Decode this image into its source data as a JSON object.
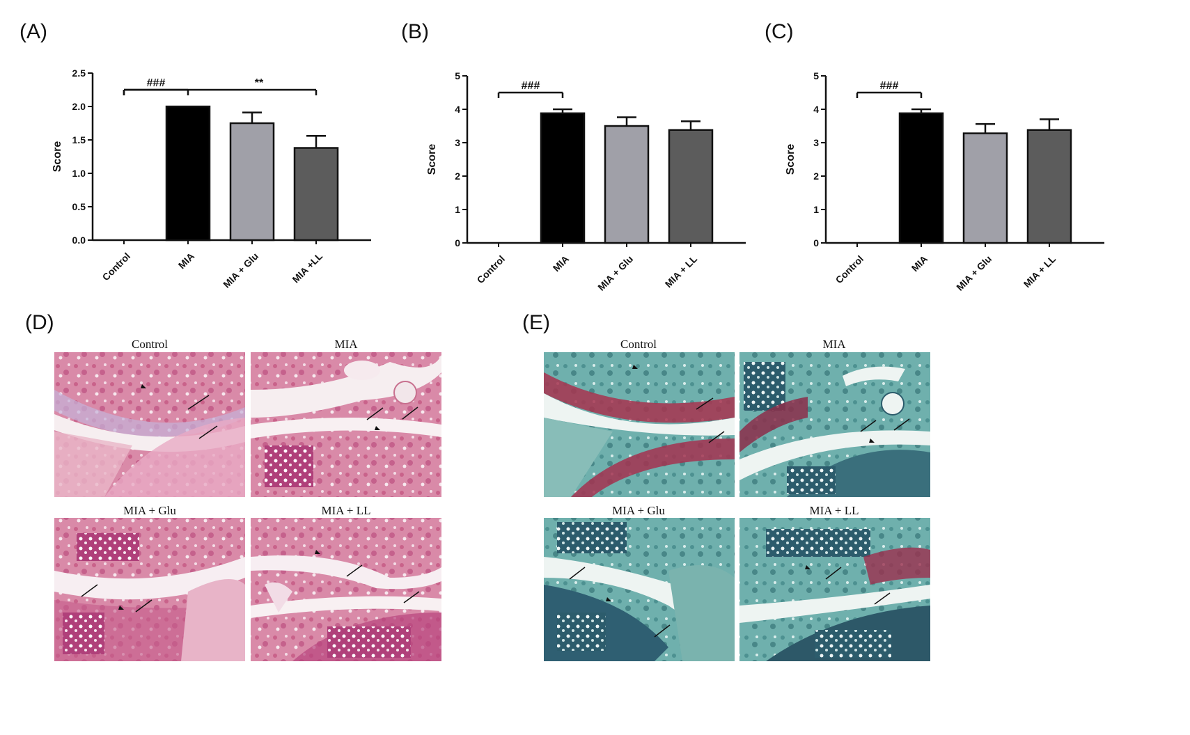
{
  "panels": {
    "A": "(A)",
    "B": "(B)",
    "C": "(C)",
    "D": "(D)",
    "E": "(E)"
  },
  "chart_data": [
    {
      "id": "A",
      "type": "bar",
      "categories": [
        "Control",
        "MIA",
        "MIA + Glu",
        "MIA +LL"
      ],
      "values": [
        0,
        2.0,
        1.75,
        1.38
      ],
      "errors": [
        0,
        0,
        0.16,
        0.18
      ],
      "ylabel": "Score",
      "ylim": [
        0,
        2.5
      ],
      "yticks": [
        "0.0",
        "0.5",
        "1.0",
        "1.5",
        "2.0",
        "2.5"
      ],
      "bar_colors": [
        "#ffffff",
        "#000000",
        "#a0a0a8",
        "#5c5c5c"
      ],
      "annotations": [
        {
          "text": "###",
          "from": "Control",
          "to": "MIA"
        },
        {
          "text": "**",
          "from": "Control",
          "to": "MIA +LL"
        }
      ]
    },
    {
      "id": "B",
      "type": "bar",
      "categories": [
        "Control",
        "MIA",
        "MIA + Glu",
        "MIA + LL"
      ],
      "values": [
        0,
        3.88,
        3.5,
        3.38
      ],
      "errors": [
        0,
        0.12,
        0.26,
        0.26
      ],
      "ylabel": "Score",
      "ylim": [
        0,
        5
      ],
      "yticks": [
        "0",
        "1",
        "2",
        "3",
        "4",
        "5"
      ],
      "bar_colors": [
        "#ffffff",
        "#000000",
        "#a0a0a8",
        "#5c5c5c"
      ],
      "annotations": [
        {
          "text": "###",
          "from": "Control",
          "to": "MIA"
        }
      ]
    },
    {
      "id": "C",
      "type": "bar",
      "categories": [
        "Control",
        "MIA",
        "MIA + Glu",
        "MIA + LL"
      ],
      "values": [
        0,
        3.88,
        3.28,
        3.38
      ],
      "errors": [
        0,
        0.12,
        0.28,
        0.32
      ],
      "ylabel": "Score",
      "ylim": [
        0,
        5
      ],
      "yticks": [
        "0",
        "1",
        "2",
        "3",
        "4",
        "5"
      ],
      "bar_colors": [
        "#ffffff",
        "#000000",
        "#a0a0a8",
        "#5c5c5c"
      ],
      "annotations": [
        {
          "text": "###",
          "from": "Control",
          "to": "MIA"
        }
      ]
    }
  ],
  "histology": {
    "D": {
      "titles": [
        "Control",
        "MIA",
        "MIA + Glu",
        "MIA + LL"
      ],
      "stain": "he"
    },
    "E": {
      "titles": [
        "Control",
        "MIA",
        "MIA + Glu",
        "MIA + LL"
      ],
      "stain": "safranin"
    }
  }
}
